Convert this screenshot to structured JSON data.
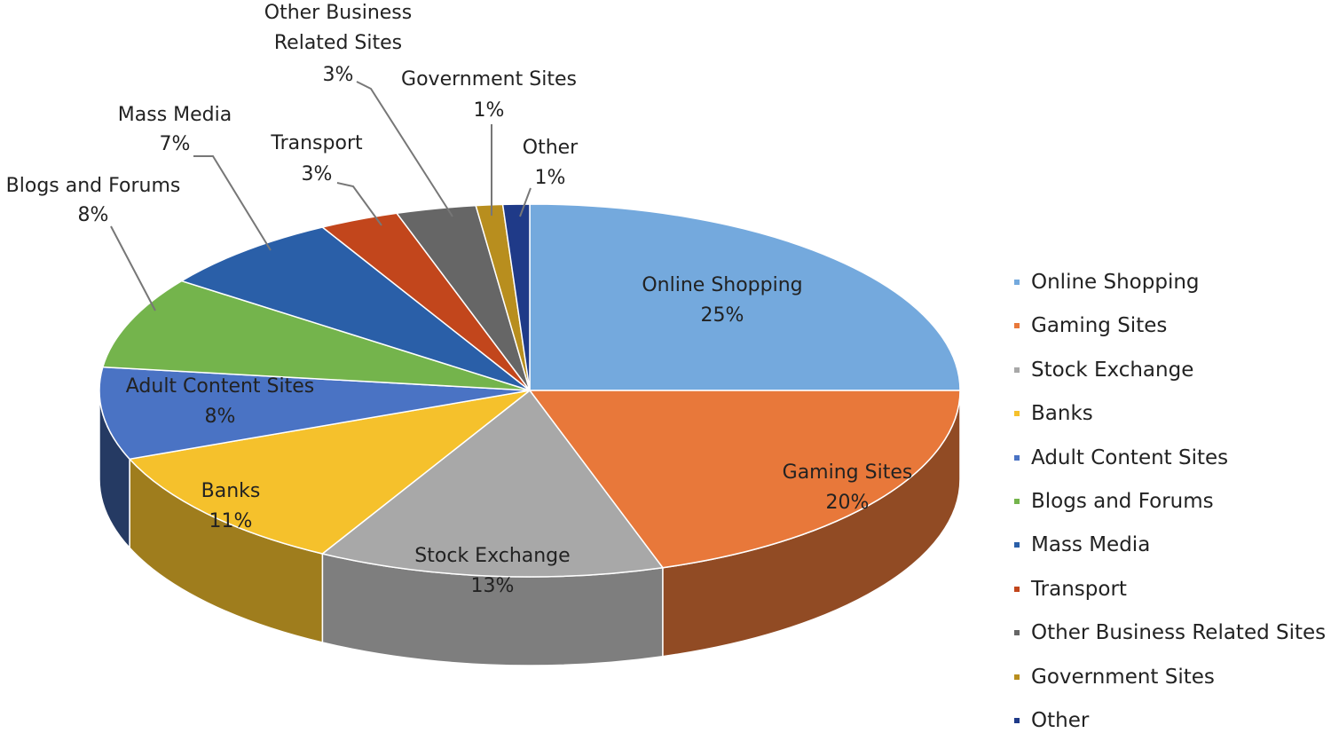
{
  "chart_data": {
    "type": "pie3d",
    "categories": [
      "Online Shopping",
      "Gaming Sites",
      "Stock Exchange",
      "Banks",
      "Adult Content Sites",
      "Blogs and Forums",
      "Mass Media",
      "Transport",
      "Other Business Related Sites",
      "Government Sites",
      "Other"
    ],
    "values": [
      25,
      20,
      13,
      11,
      8,
      8,
      7,
      3,
      3,
      1,
      1
    ],
    "value_labels": [
      "25%",
      "20%",
      "13%",
      "11%",
      "8%",
      "8%",
      "7%",
      "3%",
      "3%",
      "1%",
      "1%"
    ],
    "colors": [
      "#74a9dd",
      "#e8783a",
      "#a8a8a8",
      "#f5c12c",
      "#4a73c4",
      "#74b44c",
      "#2a5fa8",
      "#c2461c",
      "#666666",
      "#b88e1e",
      "#1f3a88"
    ],
    "legend": "right"
  }
}
